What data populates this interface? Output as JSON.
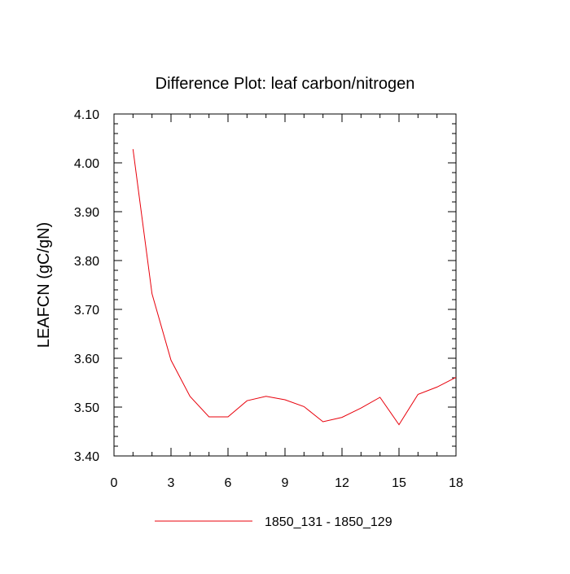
{
  "chart_data": {
    "type": "line",
    "title": "Difference Plot: leaf carbon/nitrogen",
    "xlabel": "",
    "ylabel": "LEAFCN  (gC/gN)",
    "xlim": [
      0,
      18
    ],
    "ylim": [
      3.4,
      4.1
    ],
    "x_ticks": [
      0,
      3,
      6,
      9,
      12,
      15,
      18
    ],
    "x_tick_labels": [
      "0",
      "3",
      "6",
      "9",
      "12",
      "15",
      "18"
    ],
    "y_ticks": [
      3.4,
      3.5,
      3.6,
      3.7,
      3.8,
      3.9,
      4.0,
      4.1
    ],
    "y_tick_labels": [
      "3.40",
      "3.50",
      "3.60",
      "3.70",
      "3.80",
      "3.90",
      "4.00",
      "4.10"
    ],
    "grid": false,
    "legend_position": "bottom-center",
    "series": [
      {
        "name": "1850_131 - 1850_129",
        "color": "#e8000b",
        "x": [
          1,
          2,
          3,
          4,
          5,
          6,
          7,
          8,
          9,
          10,
          11,
          12,
          13,
          14,
          15,
          16,
          17,
          18
        ],
        "values": [
          4.028,
          3.732,
          3.596,
          3.522,
          3.48,
          3.48,
          3.513,
          3.522,
          3.515,
          3.501,
          3.47,
          3.479,
          3.498,
          3.52,
          3.464,
          3.526,
          3.541,
          3.561
        ]
      }
    ]
  }
}
